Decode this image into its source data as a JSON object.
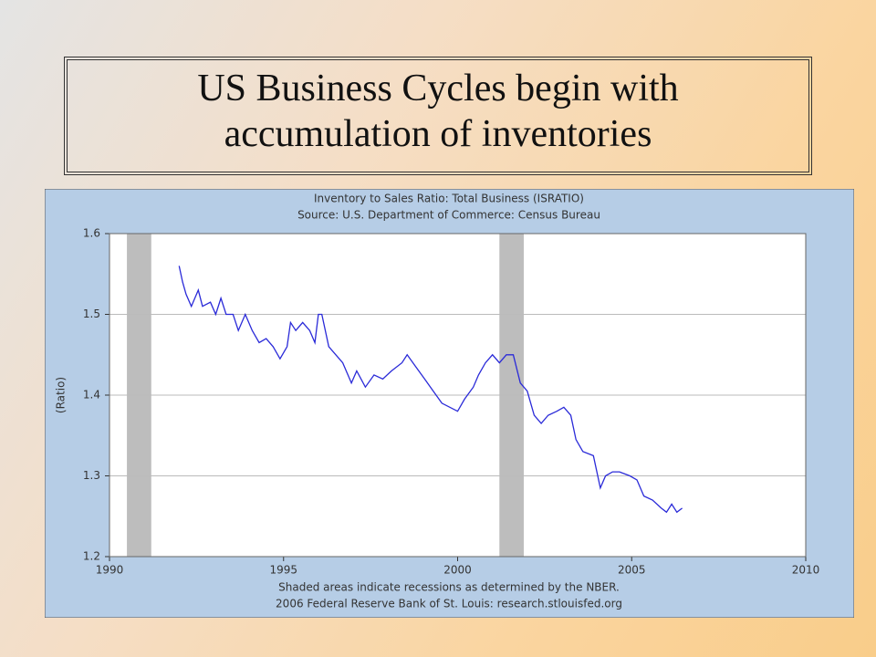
{
  "slide_title": [
    "US Business Cycles begin with",
    "accumulation of inventories"
  ],
  "chart_data": {
    "type": "line",
    "title": "Inventory to Sales Ratio: Total Business (ISRATIO)",
    "subtitle": "Source: U.S. Department of Commerce: Census Bureau",
    "ylabel": "(Ratio)",
    "notes": [
      "Shaded areas indicate recessions as determined by the NBER.",
      "2006 Federal Reserve Bank of St. Louis: research.stlouisfed.org"
    ],
    "xlim": [
      1990,
      2010
    ],
    "xticks": [
      1990,
      1995,
      2000,
      2005,
      2010
    ],
    "ylim": [
      1.2,
      1.6
    ],
    "yticks": [
      1.2,
      1.3,
      1.4,
      1.5,
      1.6
    ],
    "grid": true,
    "shaded_regions": [
      [
        1990.5,
        1991.2
      ],
      [
        2001.2,
        2001.9
      ]
    ],
    "shade_color": "#bdbdbd",
    "x": [
      1992.0,
      1992.1,
      1992.2,
      1992.35,
      1992.55,
      1992.67,
      1992.9,
      1993.05,
      1993.2,
      1993.35,
      1993.55,
      1993.7,
      1993.9,
      1994.1,
      1994.3,
      1994.5,
      1994.7,
      1994.9,
      1995.1,
      1995.2,
      1995.35,
      1995.55,
      1995.75,
      1995.9,
      1996.0,
      1996.1,
      1996.3,
      1996.5,
      1996.7,
      1996.95,
      1997.1,
      1997.35,
      1997.6,
      1997.85,
      1998.1,
      1998.4,
      1998.55,
      1998.8,
      1999.05,
      1999.3,
      1999.55,
      2000.0,
      2000.2,
      2000.45,
      2000.6,
      2000.8,
      2001.0,
      2001.2,
      2001.4,
      2001.6,
      2001.8,
      2002.0,
      2002.2,
      2002.4,
      2002.6,
      2002.85,
      2003.05,
      2003.25,
      2003.4,
      2003.6,
      2003.9,
      2004.1,
      2004.25,
      2004.45,
      2004.65,
      2004.95,
      2005.15,
      2005.35,
      2005.6,
      2005.85,
      2006.0,
      2006.15,
      2006.3,
      2006.45
    ],
    "series": [
      {
        "color": "#2a2ad8",
        "values": [
          1.56,
          1.54,
          1.525,
          1.51,
          1.53,
          1.51,
          1.515,
          1.5,
          1.52,
          1.5,
          1.5,
          1.48,
          1.5,
          1.48,
          1.465,
          1.47,
          1.46,
          1.445,
          1.46,
          1.49,
          1.48,
          1.49,
          1.48,
          1.465,
          1.5,
          1.5,
          1.46,
          1.45,
          1.44,
          1.415,
          1.43,
          1.41,
          1.425,
          1.42,
          1.43,
          1.44,
          1.45,
          1.435,
          1.42,
          1.405,
          1.39,
          1.38,
          1.395,
          1.41,
          1.425,
          1.44,
          1.45,
          1.44,
          1.45,
          1.45,
          1.415,
          1.405,
          1.375,
          1.365,
          1.375,
          1.38,
          1.385,
          1.375,
          1.345,
          1.33,
          1.325,
          1.285,
          1.3,
          1.305,
          1.305,
          1.3,
          1.295,
          1.275,
          1.27,
          1.26,
          1.255,
          1.265,
          1.255,
          1.26
        ]
      }
    ]
  }
}
